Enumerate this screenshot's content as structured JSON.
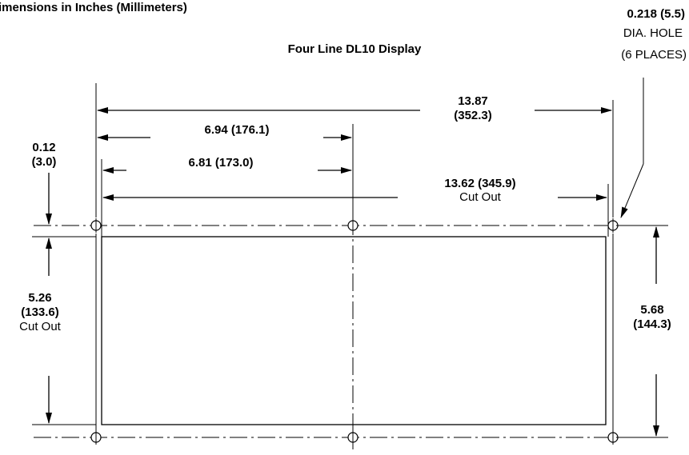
{
  "header": {
    "units_note": "imensions in Inches (Millimeters)",
    "title": "Four Line DL10 Display"
  },
  "hole_note": {
    "size": "0.218  (5.5)",
    "line2": "DIA. HOLE",
    "line3": "(6 PLACES)"
  },
  "dimensions": {
    "overall_width": {
      "inches": "13.87",
      "mm": "(352.3)"
    },
    "half_width": "6.94 (176.1)",
    "half_cutout": "6.81 (173.0)",
    "cutout_width": {
      "value": "13.62 (345.9)",
      "note": "Cut Out"
    },
    "top_offset": {
      "inches": "0.12",
      "mm": "(3.0)"
    },
    "cutout_height": {
      "inches": "5.26",
      "mm": "(133.6)",
      "note": "Cut Out"
    },
    "overall_height": {
      "inches": "5.68",
      "mm": "(144.3)"
    }
  }
}
